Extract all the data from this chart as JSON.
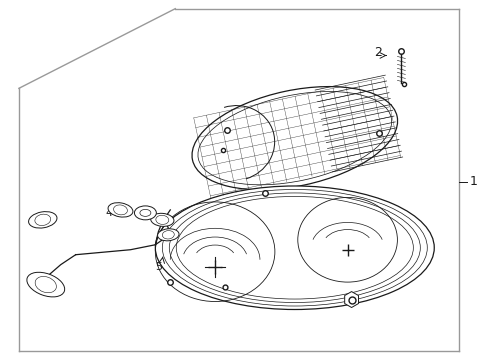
{
  "bg_color": "#ffffff",
  "line_color": "#1a1a1a",
  "gray_line": "#999999",
  "fig_width": 4.89,
  "fig_height": 3.6,
  "dpi": 100
}
